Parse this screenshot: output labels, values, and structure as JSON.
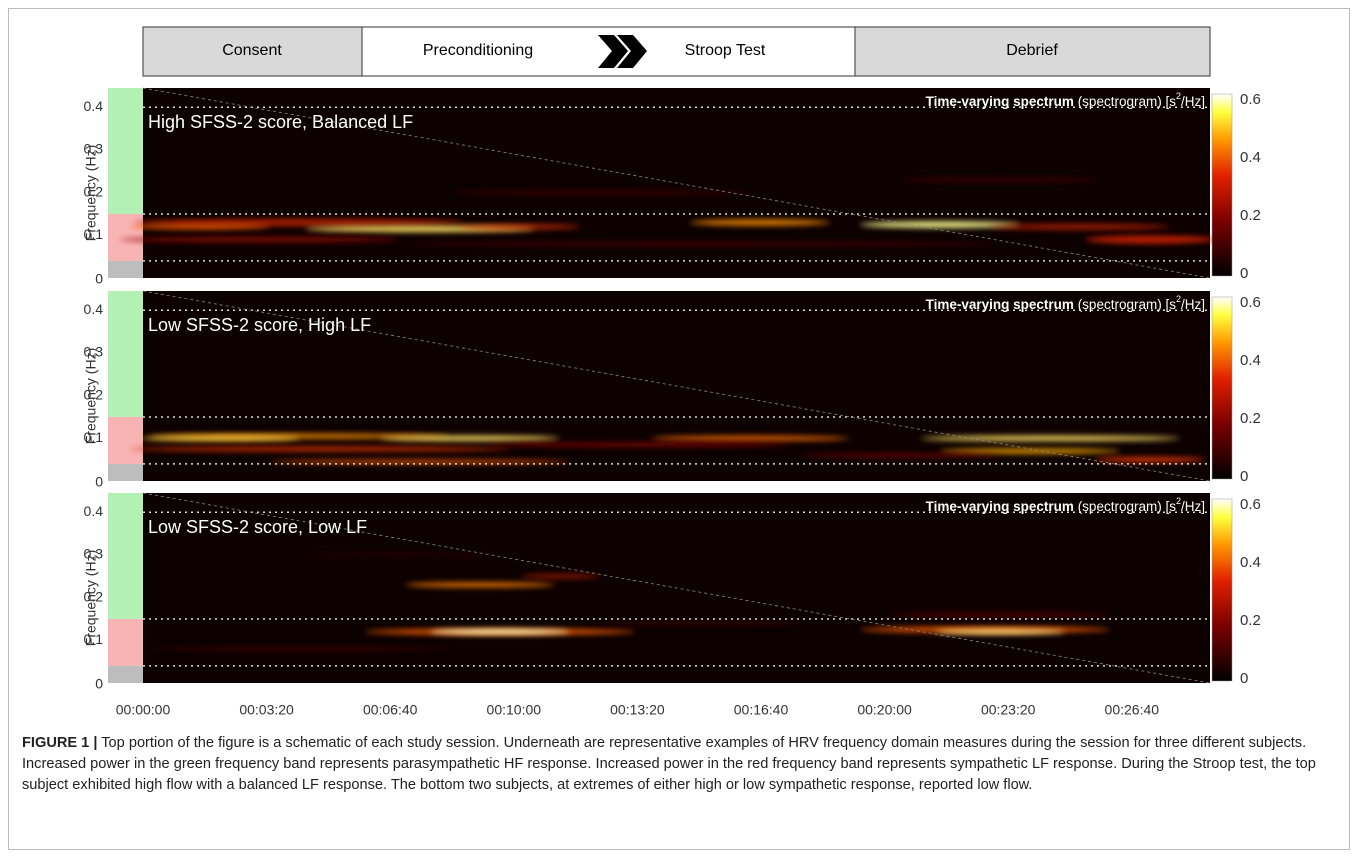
{
  "phases": [
    "Consent",
    "Preconditioning",
    "Stroop Test",
    "Debrief"
  ],
  "panels": [
    {
      "label": "High SFSS-2 score, Balanced LF"
    },
    {
      "label": "Low SFSS-2 score, High LF"
    },
    {
      "label": "Low SFSS-2 score, Low LF"
    }
  ],
  "spectrum_title": {
    "bold": "Time-varying spectrum",
    "rest": " (spectrogram) [s",
    "sup": "2",
    "end": "/Hz]"
  },
  "y_axis_title": "Frequency (Hz)",
  "y_ticks": [
    "0.4",
    "0.3",
    "0.2",
    "0.1",
    "0"
  ],
  "colorbar_ticks": [
    "0.6",
    "0.4",
    "0.2",
    "0"
  ],
  "x_ticks": [
    "00:00:00",
    "00:03:20",
    "00:06:40",
    "00:10:00",
    "00:13:20",
    "00:16:40",
    "00:20:00",
    "00:23:20",
    "00:26:40"
  ],
  "caption": {
    "label": "FIGURE 1 |",
    "text": " Top portion of the figure is a schematic of each study session. Underneath are representative examples of HRV frequency domain measures during the session for three different subjects. Increased power in the green frequency band represents parasympathetic HF response. Increased power in the red frequency band represents sympathetic LF response. During the Stroop test, the top subject exhibited high flow with a balanced LF response. The bottom two subjects, at extremes of either high or low sympathetic response, reported low flow."
  }
}
